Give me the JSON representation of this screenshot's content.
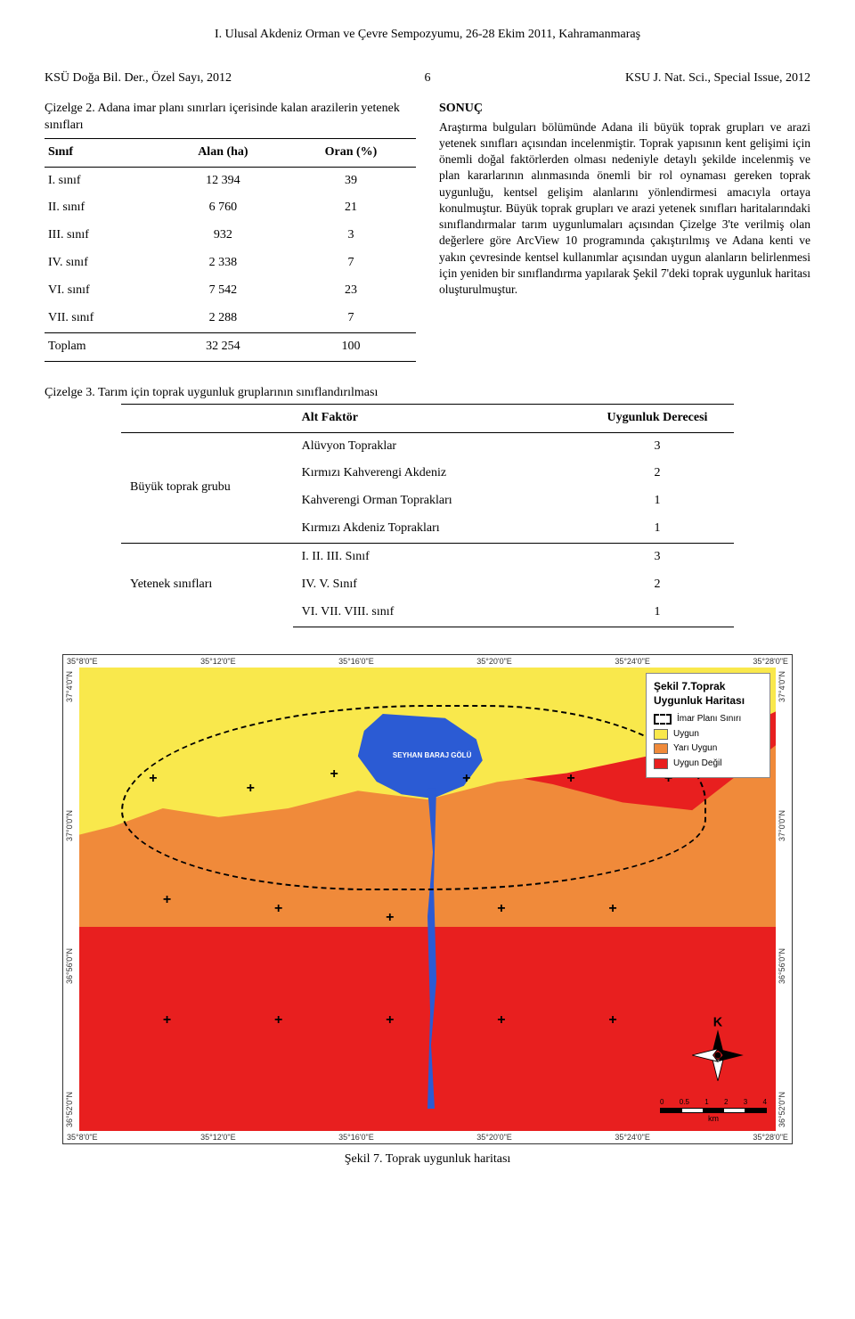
{
  "page": {
    "running_title": "I. Ulusal Akdeniz Orman ve Çevre Sempozyumu, 26-28 Ekim 2011, Kahramanmaraş",
    "header_left": "KSÜ Doğa Bil. Der., Özel Sayı, 2012",
    "header_center": "6",
    "header_right": "KSU J. Nat. Sci., Special Issue, 2012"
  },
  "table2": {
    "caption": "Çizelge 2. Adana imar planı sınırları içerisinde kalan arazilerin yetenek sınıfları",
    "columns": [
      "Sınıf",
      "Alan (ha)",
      "Oran (%)"
    ],
    "rows": [
      [
        "I. sınıf",
        "12 394",
        "39"
      ],
      [
        "II. sınıf",
        "6 760",
        "21"
      ],
      [
        "III. sınıf",
        "932",
        "3"
      ],
      [
        "IV. sınıf",
        "2 338",
        "7"
      ],
      [
        "VI. sınıf",
        "7 542",
        "23"
      ],
      [
        "VII. sınıf",
        "2 288",
        "7"
      ],
      [
        "Toplam",
        "32 254",
        "100"
      ]
    ]
  },
  "right_col": {
    "heading": "SONUÇ",
    "body": "Araştırma bulguları bölümünde Adana ili büyük toprak grupları ve arazi yetenek sınıfları açısından incelenmiştir. Toprak yapısının kent gelişimi için önemli doğal faktörlerden olması nedeniyle detaylı şekilde incelenmiş ve plan kararlarının alınmasında önemli bir rol oynaması gereken toprak uygunluğu, kentsel gelişim alanlarını yönlendirmesi amacıyla ortaya konulmuştur. Büyük toprak grupları ve arazi yetenek sınıfları haritalarındaki sınıflandırmalar tarım uygunlumaları açısından Çizelge 3'te verilmiş olan değerlere göre ArcView 10 programında çakıştırılmış ve Adana kenti ve yakın çevresinde kentsel kullanımlar açısından uygun alanların belirlenmesi için yeniden bir sınıflandırma yapılarak Şekil 7'deki toprak uygunluk haritası oluşturulmuştur."
  },
  "table3": {
    "caption": "Çizelge 3. Tarım için toprak uygunluk gruplarının sınıflandırılması",
    "head": {
      "alt": "Alt Faktör",
      "uyg": "Uygunluk Derecesi"
    },
    "groups": [
      {
        "label": "Büyük toprak grubu",
        "rows": [
          [
            "Alüvyon Topraklar",
            "3"
          ],
          [
            "Kırmızı Kahverengi Akdeniz",
            "2"
          ],
          [
            "Kahverengi Orman Toprakları",
            "1"
          ],
          [
            "Kırmızı Akdeniz Toprakları",
            "1"
          ]
        ]
      },
      {
        "label": "Yetenek sınıfları",
        "rows": [
          [
            "I. II. III. Sınıf",
            "3"
          ],
          [
            "IV. V. Sınıf",
            "2"
          ],
          [
            "VI. VII. VIII. sınıf",
            "1"
          ]
        ]
      }
    ]
  },
  "map": {
    "type": "map",
    "title": "Şekil 7.Toprak Uygunluk Haritası",
    "figure_caption": "Şekil 7. Toprak uygunluk haritası",
    "lon_ticks": [
      "35°8'0\"E",
      "35°12'0\"E",
      "35°16'0\"E",
      "35°20'0\"E",
      "35°24'0\"E",
      "35°28'0\"E"
    ],
    "lat_ticks": [
      "37°4'0\"N",
      "37°0'0\"N",
      "36°56'0\"N",
      "36°52'0\"N"
    ],
    "water_label": "SEYHAN BARAJ GÖLÜ",
    "colors": {
      "uygun": "#f9e84c",
      "yari_uygun": "#f08a3a",
      "uygun_degil": "#e81f1f",
      "water": "#2b5bd4",
      "boundary": "#000000",
      "background": "#ffffff"
    },
    "legend": {
      "boundary_label": "İmar Planı Sınırı",
      "items": [
        {
          "label": "Uygun",
          "color": "#f9e84c"
        },
        {
          "label": "Yarı Uygun",
          "color": "#f08a3a"
        },
        {
          "label": "Uygun Değil",
          "color": "#e81f1f"
        }
      ]
    },
    "compass_label": "K",
    "scalebar": {
      "ticks": [
        "0",
        "0.5",
        "1",
        "2",
        "3",
        "4"
      ],
      "unit": "km"
    },
    "crosses": [
      {
        "l": 10,
        "t": 22
      },
      {
        "l": 24,
        "t": 24
      },
      {
        "l": 36,
        "t": 21
      },
      {
        "l": 55,
        "t": 22
      },
      {
        "l": 70,
        "t": 22
      },
      {
        "l": 84,
        "t": 22
      },
      {
        "l": 12,
        "t": 48
      },
      {
        "l": 28,
        "t": 50
      },
      {
        "l": 44,
        "t": 52
      },
      {
        "l": 60,
        "t": 50
      },
      {
        "l": 76,
        "t": 50
      },
      {
        "l": 12,
        "t": 74
      },
      {
        "l": 28,
        "t": 74
      },
      {
        "l": 44,
        "t": 74
      },
      {
        "l": 60,
        "t": 74
      },
      {
        "l": 76,
        "t": 74
      }
    ]
  }
}
